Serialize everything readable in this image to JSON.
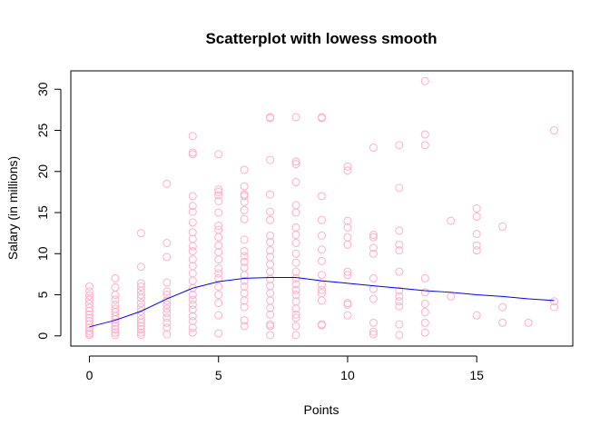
{
  "chart_data": {
    "type": "scatter",
    "title": "Scatterplot with lowess smooth",
    "xlabel": "Points",
    "ylabel": "Salary (in millions)",
    "xlim": [
      -0.72,
      18.72
    ],
    "ylim": [
      -1.24,
      32.24
    ],
    "xticks": [
      0,
      5,
      10,
      15
    ],
    "yticks": [
      0,
      5,
      10,
      15,
      20,
      25,
      30
    ],
    "point_color": "#ffaec9",
    "line_color": "#0000ff",
    "points": [
      [
        0,
        0.1
      ],
      [
        0,
        0.3
      ],
      [
        0,
        0.6
      ],
      [
        0,
        1.0
      ],
      [
        0,
        1.4
      ],
      [
        0,
        1.8
      ],
      [
        0,
        2.2
      ],
      [
        0,
        2.6
      ],
      [
        0,
        3.0
      ],
      [
        0,
        3.4
      ],
      [
        0,
        3.9
      ],
      [
        0,
        4.4
      ],
      [
        0,
        4.9
      ],
      [
        0,
        5.4
      ],
      [
        0,
        6.0
      ],
      [
        1,
        0.1
      ],
      [
        1,
        0.4
      ],
      [
        1,
        0.8
      ],
      [
        1,
        1.2
      ],
      [
        1,
        1.6
      ],
      [
        1,
        2.0
      ],
      [
        1,
        2.4
      ],
      [
        1,
        2.9
      ],
      [
        1,
        3.3
      ],
      [
        1,
        3.8
      ],
      [
        1,
        4.4
      ],
      [
        1,
        5.0
      ],
      [
        1,
        5.9
      ],
      [
        1,
        7.0
      ],
      [
        2,
        0.1
      ],
      [
        2,
        0.4
      ],
      [
        2,
        0.8
      ],
      [
        2,
        1.2
      ],
      [
        2,
        1.6
      ],
      [
        2,
        2.0
      ],
      [
        2,
        2.5
      ],
      [
        2,
        3.0
      ],
      [
        2,
        3.5
      ],
      [
        2,
        4.0
      ],
      [
        2,
        4.6
      ],
      [
        2,
        5.0
      ],
      [
        2,
        5.5
      ],
      [
        2,
        6.0
      ],
      [
        2,
        6.4
      ],
      [
        2,
        8.4
      ],
      [
        2,
        12.5
      ],
      [
        3,
        0.2
      ],
      [
        3,
        1.0
      ],
      [
        3,
        1.6
      ],
      [
        3,
        2.2
      ],
      [
        3,
        2.8
      ],
      [
        3,
        3.3
      ],
      [
        3,
        3.8
      ],
      [
        3,
        4.3
      ],
      [
        3,
        5.0
      ],
      [
        3,
        5.4
      ],
      [
        3,
        6.5
      ],
      [
        3,
        9.6
      ],
      [
        3,
        11.3
      ],
      [
        3,
        18.5
      ],
      [
        4,
        0.4
      ],
      [
        4,
        1.0
      ],
      [
        4,
        1.8
      ],
      [
        4,
        2.4
      ],
      [
        4,
        3.2
      ],
      [
        4,
        3.8
      ],
      [
        4,
        4.4
      ],
      [
        4,
        5.0
      ],
      [
        4,
        5.8
      ],
      [
        4,
        6.7
      ],
      [
        4,
        7.6
      ],
      [
        4,
        8.5
      ],
      [
        4,
        9.3
      ],
      [
        4,
        10.3
      ],
      [
        4,
        10.9
      ],
      [
        4,
        11.8
      ],
      [
        4,
        12.6
      ],
      [
        4,
        13.8
      ],
      [
        4,
        15.1
      ],
      [
        4,
        15.8
      ],
      [
        4,
        17.0
      ],
      [
        4,
        22.1
      ],
      [
        4,
        22.3
      ],
      [
        4,
        24.3
      ],
      [
        5,
        0.3
      ],
      [
        5,
        2.5
      ],
      [
        5,
        4.0
      ],
      [
        5,
        5.0
      ],
      [
        5,
        6.0
      ],
      [
        5,
        7.0
      ],
      [
        5,
        7.6
      ],
      [
        5,
        8.2
      ],
      [
        5,
        9.3
      ],
      [
        5,
        10.2
      ],
      [
        5,
        11.0
      ],
      [
        5,
        12.0
      ],
      [
        5,
        12.9
      ],
      [
        5,
        13.4
      ],
      [
        5,
        15.0
      ],
      [
        5,
        16.4
      ],
      [
        5,
        17.1
      ],
      [
        5,
        17.5
      ],
      [
        5,
        17.8
      ],
      [
        5,
        22.1
      ],
      [
        6,
        1.2
      ],
      [
        6,
        1.9
      ],
      [
        6,
        3.5
      ],
      [
        6,
        4.3
      ],
      [
        6,
        5.2
      ],
      [
        6,
        6.0
      ],
      [
        6,
        6.7
      ],
      [
        6,
        7.4
      ],
      [
        6,
        8.3
      ],
      [
        6,
        9.0
      ],
      [
        6,
        9.7
      ],
      [
        6,
        10.3
      ],
      [
        6,
        11.7
      ],
      [
        6,
        14.2
      ],
      [
        6,
        15.3
      ],
      [
        6,
        16.3
      ],
      [
        6,
        17.0
      ],
      [
        6,
        17.2
      ],
      [
        6,
        18.2
      ],
      [
        6,
        20.2
      ],
      [
        7,
        0.1
      ],
      [
        7,
        1.2
      ],
      [
        7,
        1.4
      ],
      [
        7,
        2.6
      ],
      [
        7,
        3.4
      ],
      [
        7,
        4.3
      ],
      [
        7,
        5.2
      ],
      [
        7,
        6.1
      ],
      [
        7,
        6.9
      ],
      [
        7,
        7.8
      ],
      [
        7,
        8.7
      ],
      [
        7,
        9.6
      ],
      [
        7,
        10.4
      ],
      [
        7,
        11.4
      ],
      [
        7,
        12.2
      ],
      [
        7,
        14.1
      ],
      [
        7,
        15.1
      ],
      [
        7,
        17.2
      ],
      [
        7,
        21.4
      ],
      [
        7,
        26.5
      ],
      [
        7,
        26.6
      ],
      [
        8,
        0.1
      ],
      [
        8,
        1.2
      ],
      [
        8,
        2.2
      ],
      [
        8,
        2.6
      ],
      [
        8,
        3.3
      ],
      [
        8,
        4.2
      ],
      [
        8,
        5.0
      ],
      [
        8,
        5.6
      ],
      [
        8,
        6.3
      ],
      [
        8,
        7.0
      ],
      [
        8,
        7.8
      ],
      [
        8,
        8.9
      ],
      [
        8,
        10.0
      ],
      [
        8,
        11.3
      ],
      [
        8,
        12.3
      ],
      [
        8,
        13.2
      ],
      [
        8,
        15.0
      ],
      [
        8,
        15.9
      ],
      [
        8,
        18.7
      ],
      [
        8,
        20.9
      ],
      [
        8,
        21.2
      ],
      [
        8,
        26.6
      ],
      [
        9,
        1.3
      ],
      [
        9,
        1.4
      ],
      [
        9,
        4.3
      ],
      [
        9,
        5.2
      ],
      [
        9,
        5.6
      ],
      [
        9,
        6.2
      ],
      [
        9,
        7.4
      ],
      [
        9,
        9.1
      ],
      [
        9,
        10.5
      ],
      [
        9,
        12.2
      ],
      [
        9,
        14.1
      ],
      [
        9,
        17.0
      ],
      [
        9,
        26.5
      ],
      [
        9,
        26.6
      ],
      [
        10,
        2.5
      ],
      [
        10,
        3.8
      ],
      [
        10,
        4.0
      ],
      [
        10,
        7.4
      ],
      [
        10,
        7.8
      ],
      [
        10,
        11.1
      ],
      [
        10,
        12.0
      ],
      [
        10,
        13.2
      ],
      [
        10,
        14.0
      ],
      [
        10,
        20.1
      ],
      [
        10,
        20.6
      ],
      [
        11,
        0.2
      ],
      [
        11,
        0.5
      ],
      [
        11,
        1.6
      ],
      [
        11,
        4.5
      ],
      [
        11,
        5.7
      ],
      [
        11,
        7.0
      ],
      [
        11,
        10.0
      ],
      [
        11,
        10.7
      ],
      [
        11,
        12.0
      ],
      [
        11,
        12.3
      ],
      [
        11,
        22.9
      ],
      [
        12,
        0.1
      ],
      [
        12,
        1.4
      ],
      [
        12,
        3.6
      ],
      [
        12,
        4.2
      ],
      [
        12,
        4.8
      ],
      [
        12,
        5.5
      ],
      [
        12,
        7.8
      ],
      [
        12,
        10.4
      ],
      [
        12,
        11.1
      ],
      [
        12,
        12.8
      ],
      [
        12,
        18.0
      ],
      [
        12,
        23.2
      ],
      [
        13,
        0.4
      ],
      [
        13,
        1.6
      ],
      [
        13,
        2.9
      ],
      [
        13,
        3.9
      ],
      [
        13,
        5.3
      ],
      [
        13,
        7.0
      ],
      [
        13,
        23.2
      ],
      [
        13,
        24.5
      ],
      [
        13,
        31.0
      ],
      [
        14,
        4.8
      ],
      [
        14,
        14.0
      ],
      [
        15,
        2.5
      ],
      [
        15,
        10.4
      ],
      [
        15,
        11.0
      ],
      [
        15,
        12.4
      ],
      [
        15,
        14.5
      ],
      [
        15,
        15.5
      ],
      [
        16,
        1.6
      ],
      [
        16,
        3.5
      ],
      [
        16,
        13.3
      ],
      [
        17,
        1.6
      ],
      [
        18,
        3.5
      ],
      [
        18,
        4.2
      ],
      [
        18,
        25.0
      ]
    ],
    "smooth": [
      [
        0,
        1.1
      ],
      [
        1,
        1.9
      ],
      [
        2,
        3.0
      ],
      [
        3,
        4.5
      ],
      [
        4,
        5.8
      ],
      [
        5,
        6.6
      ],
      [
        6,
        7.0
      ],
      [
        7,
        7.1
      ],
      [
        8,
        7.1
      ],
      [
        9,
        6.7
      ],
      [
        10,
        6.4
      ],
      [
        11,
        6.1
      ],
      [
        12,
        5.8
      ],
      [
        13,
        5.5
      ],
      [
        14,
        5.3
      ],
      [
        15,
        5.0
      ],
      [
        16,
        4.8
      ],
      [
        17,
        4.5
      ],
      [
        18,
        4.3
      ]
    ]
  }
}
